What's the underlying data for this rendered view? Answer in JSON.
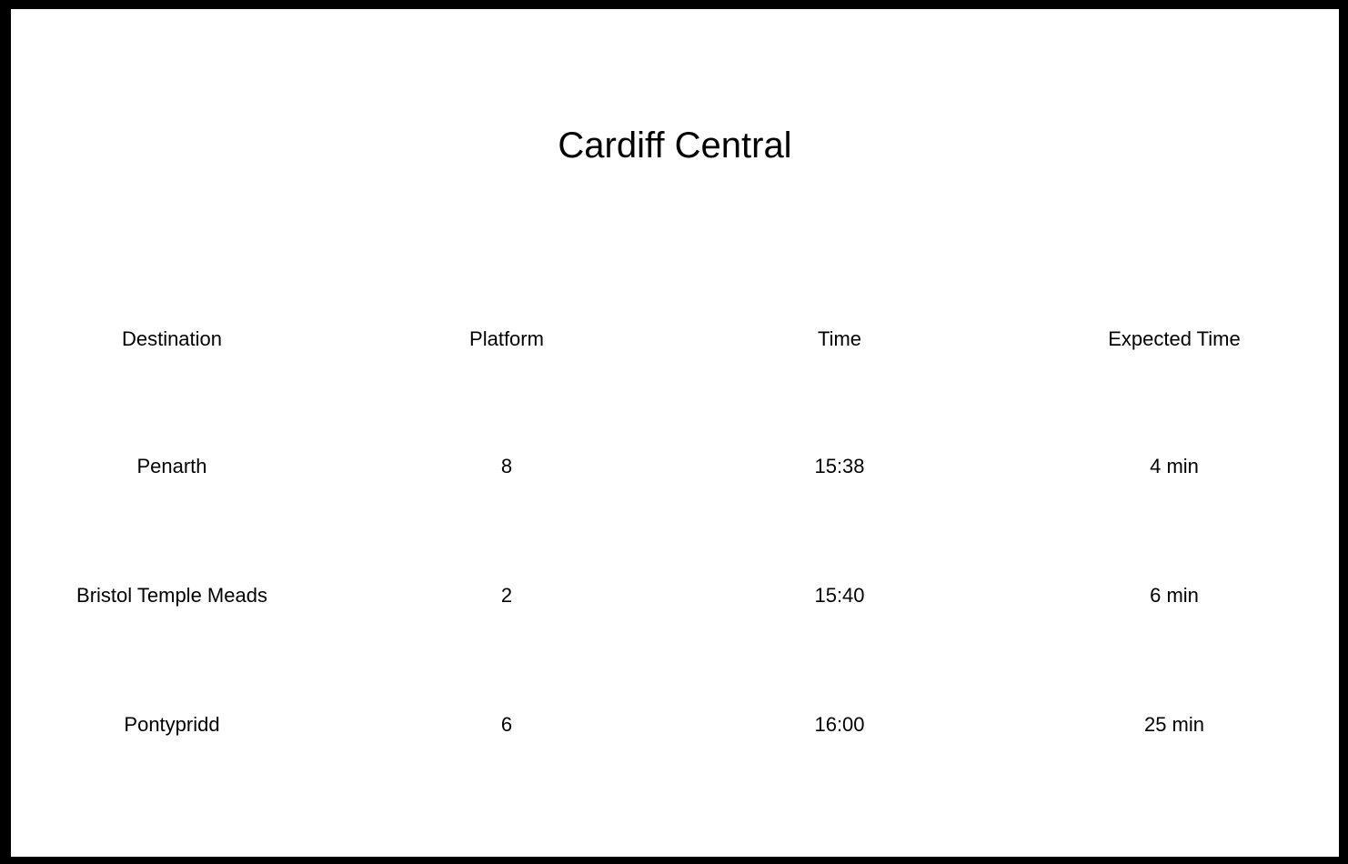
{
  "station": {
    "name": "Cardiff Central"
  },
  "departures": {
    "headers": [
      "Destination",
      "Platform",
      "Time",
      "Expected Time"
    ],
    "rows": [
      [
        "Penarth",
        "8",
        "15:38",
        "4 min"
      ],
      [
        "Bristol Temple Meads",
        "2",
        "15:40",
        "6 min"
      ],
      [
        "Pontypridd",
        "6",
        "16:00",
        "25 min"
      ]
    ]
  }
}
